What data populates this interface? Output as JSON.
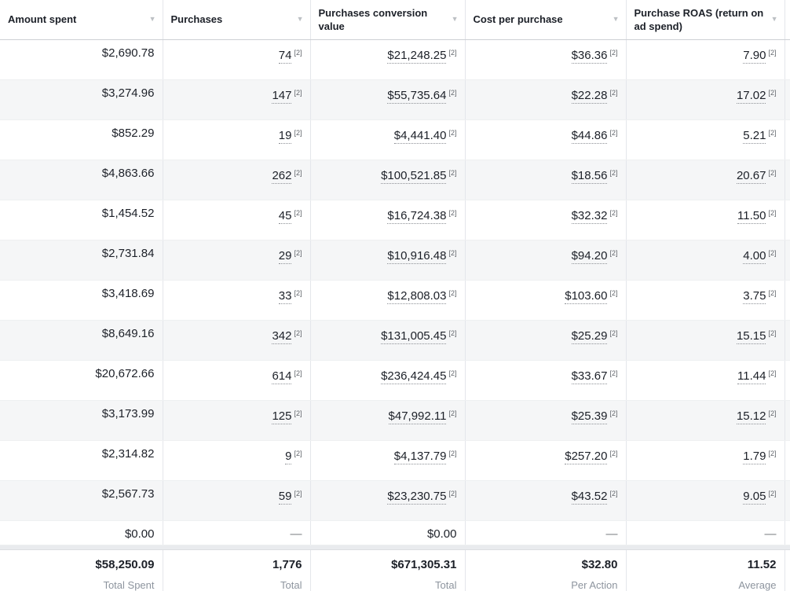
{
  "colors": {
    "text": "#1c2028",
    "muted": "#8d949e",
    "stripe": "#f5f6f7",
    "column_border": "#e4e6eb",
    "header_border": "#ced0d4",
    "sort_caret": "#bcc0c4"
  },
  "table": {
    "sort_icon": "▼",
    "footnote_marker": "[2]",
    "empty_placeholder": "—",
    "columns": [
      {
        "id": "amount-spent",
        "label": "Amount spent"
      },
      {
        "id": "purchases",
        "label": "Purchases"
      },
      {
        "id": "conversion-value",
        "label": "Purchases conversion value"
      },
      {
        "id": "cost-per-purchase",
        "label": "Cost per purchase"
      },
      {
        "id": "roas",
        "label": "Purchase ROAS (return on ad spend)"
      }
    ],
    "rows": [
      {
        "cells": [
          {
            "v": "$2,690.78",
            "fn": false
          },
          {
            "v": "74",
            "fn": true
          },
          {
            "v": "$21,248.25",
            "fn": true
          },
          {
            "v": "$36.36",
            "fn": true
          },
          {
            "v": "7.90",
            "fn": true
          }
        ]
      },
      {
        "cells": [
          {
            "v": "$3,274.96",
            "fn": false
          },
          {
            "v": "147",
            "fn": true
          },
          {
            "v": "$55,735.64",
            "fn": true
          },
          {
            "v": "$22.28",
            "fn": true
          },
          {
            "v": "17.02",
            "fn": true
          }
        ]
      },
      {
        "cells": [
          {
            "v": "$852.29",
            "fn": false
          },
          {
            "v": "19",
            "fn": true
          },
          {
            "v": "$4,441.40",
            "fn": true
          },
          {
            "v": "$44.86",
            "fn": true
          },
          {
            "v": "5.21",
            "fn": true
          }
        ]
      },
      {
        "cells": [
          {
            "v": "$4,863.66",
            "fn": false
          },
          {
            "v": "262",
            "fn": true
          },
          {
            "v": "$100,521.85",
            "fn": true
          },
          {
            "v": "$18.56",
            "fn": true
          },
          {
            "v": "20.67",
            "fn": true
          }
        ]
      },
      {
        "cells": [
          {
            "v": "$1,454.52",
            "fn": false
          },
          {
            "v": "45",
            "fn": true
          },
          {
            "v": "$16,724.38",
            "fn": true
          },
          {
            "v": "$32.32",
            "fn": true
          },
          {
            "v": "11.50",
            "fn": true
          }
        ]
      },
      {
        "cells": [
          {
            "v": "$2,731.84",
            "fn": false
          },
          {
            "v": "29",
            "fn": true
          },
          {
            "v": "$10,916.48",
            "fn": true
          },
          {
            "v": "$94.20",
            "fn": true
          },
          {
            "v": "4.00",
            "fn": true
          }
        ]
      },
      {
        "cells": [
          {
            "v": "$3,418.69",
            "fn": false
          },
          {
            "v": "33",
            "fn": true
          },
          {
            "v": "$12,808.03",
            "fn": true
          },
          {
            "v": "$103.60",
            "fn": true
          },
          {
            "v": "3.75",
            "fn": true
          }
        ]
      },
      {
        "cells": [
          {
            "v": "$8,649.16",
            "fn": false
          },
          {
            "v": "342",
            "fn": true
          },
          {
            "v": "$131,005.45",
            "fn": true
          },
          {
            "v": "$25.29",
            "fn": true
          },
          {
            "v": "15.15",
            "fn": true
          }
        ]
      },
      {
        "cells": [
          {
            "v": "$20,672.66",
            "fn": false
          },
          {
            "v": "614",
            "fn": true
          },
          {
            "v": "$236,424.45",
            "fn": true
          },
          {
            "v": "$33.67",
            "fn": true
          },
          {
            "v": "11.44",
            "fn": true
          }
        ]
      },
      {
        "cells": [
          {
            "v": "$3,173.99",
            "fn": false
          },
          {
            "v": "125",
            "fn": true
          },
          {
            "v": "$47,992.11",
            "fn": true
          },
          {
            "v": "$25.39",
            "fn": true
          },
          {
            "v": "15.12",
            "fn": true
          }
        ]
      },
      {
        "cells": [
          {
            "v": "$2,314.82",
            "fn": false
          },
          {
            "v": "9",
            "fn": true
          },
          {
            "v": "$4,137.79",
            "fn": true
          },
          {
            "v": "$257.20",
            "fn": true
          },
          {
            "v": "1.79",
            "fn": true
          }
        ]
      },
      {
        "cells": [
          {
            "v": "$2,567.73",
            "fn": false
          },
          {
            "v": "59",
            "fn": true
          },
          {
            "v": "$23,230.75",
            "fn": true
          },
          {
            "v": "$43.52",
            "fn": true
          },
          {
            "v": "9.05",
            "fn": true
          }
        ]
      },
      {
        "cells": [
          {
            "v": "$0.00",
            "fn": false
          },
          {
            "v": "—",
            "fn": false
          },
          {
            "v": "$0.00",
            "fn": false
          },
          {
            "v": "—",
            "fn": false
          },
          {
            "v": "—",
            "fn": false
          }
        ]
      }
    ],
    "totals": [
      {
        "value": "$58,250.09",
        "label": "Total Spent"
      },
      {
        "value": "1,776",
        "label": "Total"
      },
      {
        "value": "$671,305.31",
        "label": "Total"
      },
      {
        "value": "$32.80",
        "label": "Per Action"
      },
      {
        "value": "11.52",
        "label": "Average"
      }
    ]
  }
}
